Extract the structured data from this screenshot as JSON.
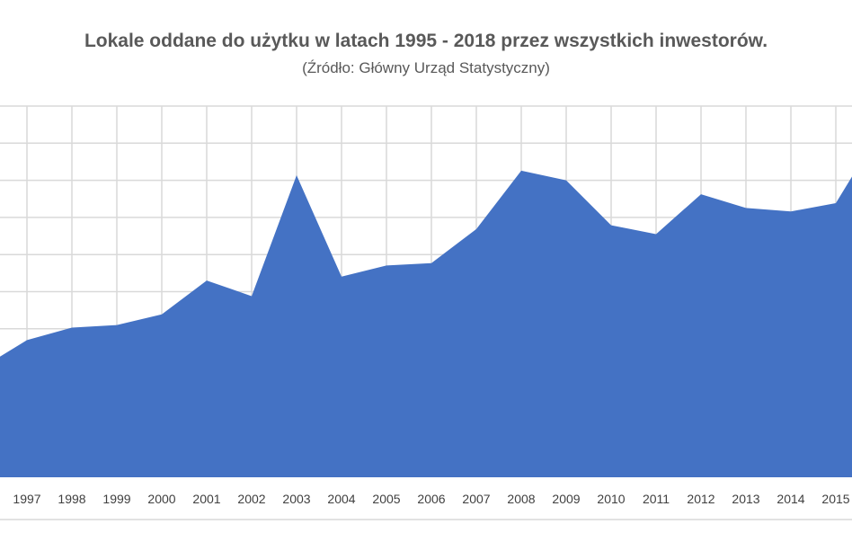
{
  "chart_data": {
    "type": "area",
    "title": "Lokale oddane do użytku w latach 1995 - 2018 przez wszystkich inwestorów.",
    "subtitle": "(Źródło: Główny Urząd Statystyczny)",
    "categories": [
      "1997",
      "1998",
      "1999",
      "2000",
      "2001",
      "2002",
      "2003",
      "2004",
      "2005",
      "2006",
      "2007",
      "2008",
      "2009",
      "2010",
      "2011",
      "2012",
      "2013",
      "2014",
      "2015"
    ],
    "series": [
      {
        "color": "#4472c4",
        "values": [
          73.9,
          80.6,
          82.0,
          87.8,
          106.0,
          97.6,
          162.7,
          108.1,
          114.1,
          115.4,
          133.7,
          165.2,
          160.0,
          135.8,
          131.0,
          152.5,
          145.1,
          143.2,
          147.7
        ]
      }
    ],
    "edge_values": {
      "left": 65.0,
      "right": 162.0
    },
    "ylim": [
      0,
      200
    ],
    "y_gridline_step": 20,
    "grid": true,
    "colors": {
      "area": "#4472c4",
      "grid": "#d9d9d9",
      "text": "#595959"
    }
  }
}
